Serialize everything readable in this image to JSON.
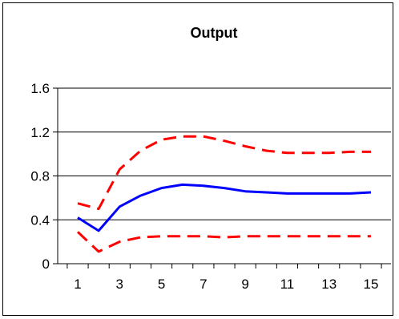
{
  "chart_data": {
    "type": "line",
    "title": "Output",
    "xlabel": "",
    "ylabel": "",
    "x": [
      1,
      2,
      3,
      4,
      5,
      6,
      7,
      8,
      9,
      10,
      11,
      12,
      13,
      14,
      15
    ],
    "x_ticks": [
      "1",
      "3",
      "5",
      "7",
      "9",
      "11",
      "13",
      "15"
    ],
    "y_ticks": [
      "0",
      "0.4",
      "0.8",
      "1.2",
      "1.6"
    ],
    "ylim": [
      0,
      1.6
    ],
    "xlim": [
      1,
      15
    ],
    "grid": "horizontal",
    "legend": "none",
    "series": [
      {
        "style": "solid",
        "color": "#0000ff",
        "values": [
          0.42,
          0.3,
          0.52,
          0.62,
          0.69,
          0.72,
          0.71,
          0.69,
          0.66,
          0.65,
          0.64,
          0.64,
          0.64,
          0.64,
          0.65
        ]
      },
      {
        "style": "dashed",
        "color": "#ff0000",
        "values": [
          0.55,
          0.5,
          0.86,
          1.03,
          1.13,
          1.16,
          1.16,
          1.12,
          1.07,
          1.03,
          1.01,
          1.01,
          1.01,
          1.02,
          1.02
        ]
      },
      {
        "style": "dashed",
        "color": "#ff0000",
        "values": [
          0.29,
          0.11,
          0.2,
          0.24,
          0.25,
          0.25,
          0.25,
          0.24,
          0.25,
          0.25,
          0.25,
          0.25,
          0.25,
          0.25,
          0.25
        ]
      }
    ]
  }
}
